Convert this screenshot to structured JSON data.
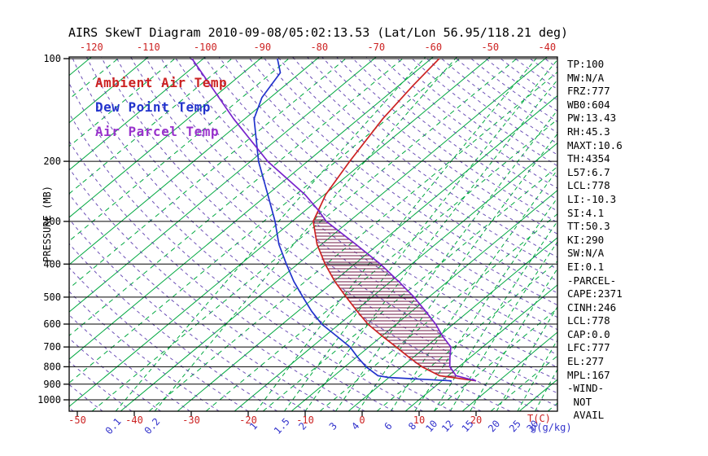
{
  "title": "AIRS SkewT Diagram 2010-09-08/05:02:13.53 (Lat/Lon 56.95/118.21 deg)",
  "legend": [
    {
      "key": "ambient-temp",
      "label": "Ambient Air Temp",
      "color": "#cc2222"
    },
    {
      "key": "dew-point-temp",
      "label": "Dew Point Temp",
      "color": "#2233cc"
    },
    {
      "key": "air-parcel-temp",
      "label": "Air Parcel Temp",
      "color": "#9933cc"
    }
  ],
  "stats_panel": [
    "TP:100",
    "MW:N/A",
    "FRZ:777",
    "WB0:604",
    "PW:13.43",
    "RH:45.3",
    "MAXT:10.6",
    "TH:4354",
    "L57:6.7",
    "LCL:778",
    "LI:-10.3",
    "SI:4.1",
    "TT:50.3",
    "KI:290",
    "SW:N/A",
    "EI:0.1",
    "-PARCEL-",
    "CAPE:2371",
    "CINH:246",
    "LCL:778",
    "CAP:0.0",
    "LFC:777",
    "EL:277",
    "MPL:167",
    "-WIND-",
    " NOT",
    " AVAIL"
  ],
  "colors": {
    "isotherm": "#00a840",
    "dry_adiabat": "#5533aa",
    "ambient": "#cc2222",
    "dew_point": "#2233cc",
    "parcel": "#7722cc",
    "hatch": "#701845",
    "axis": "#000000",
    "temp_label": "#cc2222",
    "mixing_label": "#3333cc"
  },
  "chart_data": {
    "type": "line",
    "variant": "skew-t",
    "title": "AIRS SkewT Diagram 2010-09-08/05:02:13.53 (Lat/Lon 56.95/118.21 deg)",
    "ylabel": "PRESSURE (MB)",
    "xlabel": "T(C)",
    "x2label": "g(g/kg)",
    "y_scale": "log",
    "ylim": [
      1000,
      100
    ],
    "pressure_ticks": [
      100,
      200,
      300,
      400,
      500,
      600,
      700,
      800,
      900,
      1000
    ],
    "top_temp_ticks_c": [
      -120,
      -110,
      -100,
      -90,
      -80,
      -70,
      -60,
      -50,
      -40
    ],
    "bottom_temp_ticks_c": [
      -50,
      -40,
      -30,
      -20,
      -10,
      0,
      10,
      20
    ],
    "mixing_ratio_ticks_gkg": [
      0.1,
      0.2,
      1,
      1.5,
      2,
      3,
      4,
      6,
      8,
      10,
      12,
      15,
      20,
      25,
      30
    ],
    "isotherm_step_c": 5,
    "series": [
      {
        "key": "ambient-temp",
        "name": "Ambient Air Temp",
        "color": "#cc2222",
        "style": "solid",
        "points_p_t": [
          [
            880,
            16.0
          ],
          [
            850,
            8.5
          ],
          [
            800,
            3.5
          ],
          [
            750,
            -0.8
          ],
          [
            700,
            -5.2
          ],
          [
            650,
            -10.0
          ],
          [
            600,
            -15.0
          ],
          [
            550,
            -19.6
          ],
          [
            500,
            -24.5
          ],
          [
            450,
            -29.8
          ],
          [
            400,
            -35.2
          ],
          [
            350,
            -40.8
          ],
          [
            300,
            -46.3
          ],
          [
            250,
            -49.8
          ],
          [
            200,
            -52.6
          ],
          [
            150,
            -55.8
          ],
          [
            120,
            -57.5
          ],
          [
            100,
            -58.6
          ]
        ]
      },
      {
        "key": "dew-point-temp",
        "name": "Dew Point Temp",
        "color": "#2233cc",
        "style": "solid",
        "points_p_t": [
          [
            880,
            11.7
          ],
          [
            860,
            0.0
          ],
          [
            850,
            -2.3
          ],
          [
            800,
            -6.3
          ],
          [
            750,
            -9.8
          ],
          [
            700,
            -13.3
          ],
          [
            650,
            -18.0
          ],
          [
            600,
            -23.1
          ],
          [
            550,
            -27.6
          ],
          [
            500,
            -32.1
          ],
          [
            450,
            -37.0
          ],
          [
            400,
            -42.0
          ],
          [
            350,
            -47.5
          ],
          [
            300,
            -53.0
          ],
          [
            250,
            -60.0
          ],
          [
            200,
            -68.6
          ],
          [
            150,
            -78.4
          ],
          [
            130,
            -81.5
          ],
          [
            110,
            -83.5
          ],
          [
            100,
            -87.0
          ]
        ]
      },
      {
        "key": "air-parcel-temp",
        "name": "Air Parcel Temp",
        "color": "#7722cc",
        "style": "solid",
        "points_p_t": [
          [
            880,
            16.0
          ],
          [
            850,
            11.4
          ],
          [
            800,
            8.4
          ],
          [
            750,
            6.4
          ],
          [
            700,
            4.4
          ],
          [
            650,
            0.6
          ],
          [
            600,
            -3.1
          ],
          [
            550,
            -7.6
          ],
          [
            500,
            -12.6
          ],
          [
            450,
            -18.6
          ],
          [
            400,
            -25.5
          ],
          [
            350,
            -34.0
          ],
          [
            300,
            -44.0
          ],
          [
            277,
            -48.0
          ],
          [
            250,
            -53.5
          ],
          [
            200,
            -67.0
          ],
          [
            150,
            -82.0
          ],
          [
            120,
            -93.0
          ],
          [
            100,
            -102.0
          ]
        ]
      }
    ],
    "cape_hatch": {
      "between": [
        "Air Parcel Temp",
        "Ambient Air Temp"
      ],
      "lower_p": 862,
      "upper_p": 277
    }
  }
}
